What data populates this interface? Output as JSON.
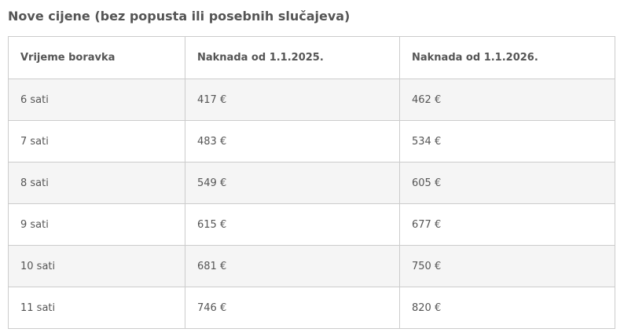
{
  "title": "Nove cijene (bez popusta ili posebnih slučajeva)",
  "table": {
    "headers": [
      "Vrijeme boravka",
      "Naknada od 1.1.2025.",
      "Naknada od 1.1.2026."
    ],
    "rows": [
      [
        "6 sati",
        "417 €",
        "462 €"
      ],
      [
        "7 sati",
        "483 €",
        "534 €"
      ],
      [
        "8 sati",
        "549 €",
        "605 €"
      ],
      [
        "9 sati",
        "615 €",
        "677 €"
      ],
      [
        "10 sati",
        "681 €",
        "750 €"
      ],
      [
        "11 sati",
        "746 €",
        "820 €"
      ]
    ]
  }
}
